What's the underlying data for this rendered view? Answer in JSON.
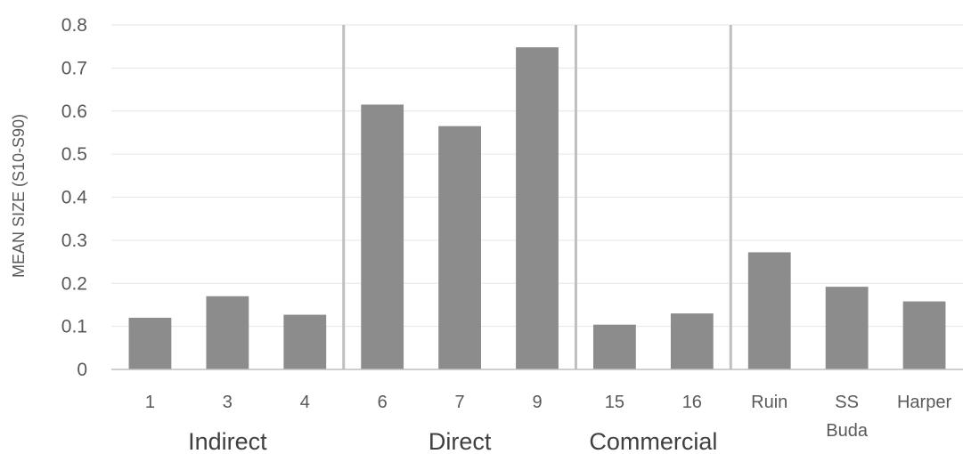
{
  "chart_data": {
    "type": "bar",
    "ylabel": "MEAN SIZE (S10-S90)",
    "ylim": [
      0,
      0.8
    ],
    "yticks": [
      "0",
      "0.1",
      "0.2",
      "0.3",
      "0.4",
      "0.5",
      "0.6",
      "0.7",
      "0.8"
    ],
    "grid": true,
    "bar_color": "#8c8c8c",
    "categories": [
      "1",
      "3",
      "4",
      "6",
      "7",
      "9",
      "15",
      "16",
      "Ruin",
      "SS Buda",
      "Harper"
    ],
    "values": [
      0.12,
      0.17,
      0.127,
      0.615,
      0.565,
      0.748,
      0.104,
      0.13,
      0.272,
      0.192,
      0.158
    ],
    "groups": [
      {
        "name": "Indirect",
        "categories": [
          "1",
          "3",
          "4"
        ]
      },
      {
        "name": "Direct",
        "categories": [
          "6",
          "7",
          "9"
        ]
      },
      {
        "name": "Commercial",
        "categories": [
          "15",
          "16"
        ]
      },
      {
        "name": "",
        "categories": [
          "Ruin",
          "SS Buda",
          "Harper"
        ]
      }
    ]
  }
}
